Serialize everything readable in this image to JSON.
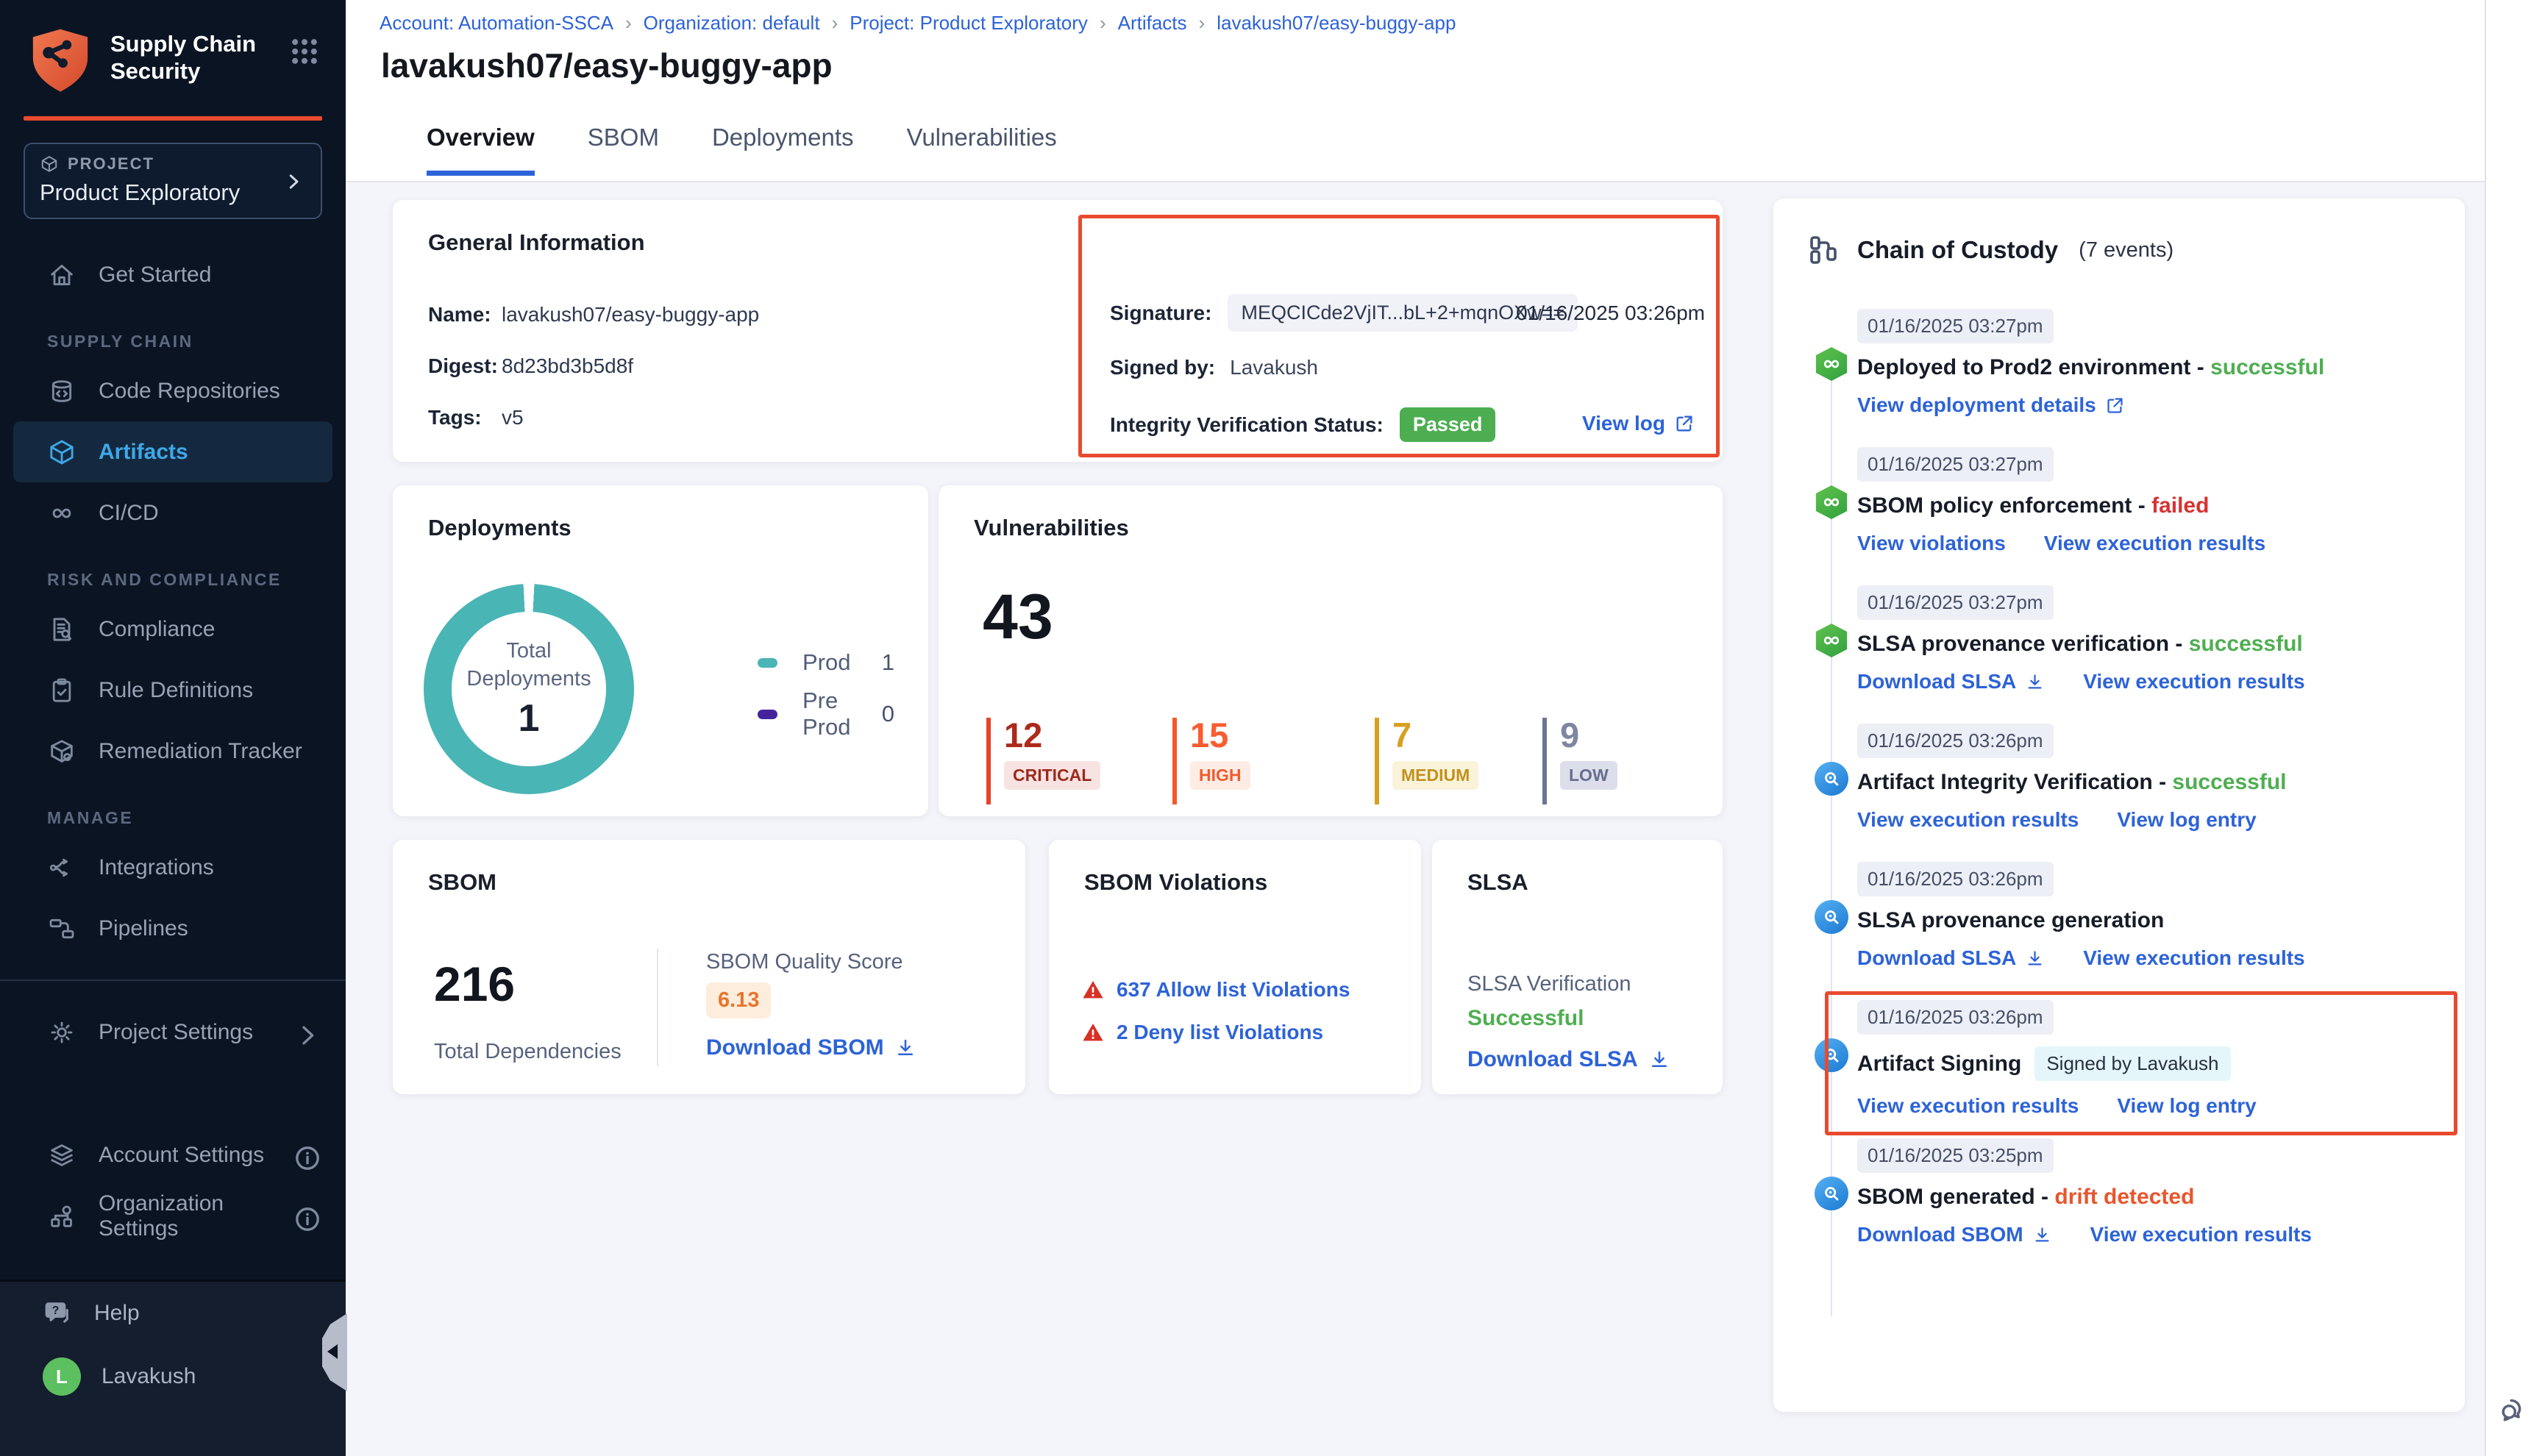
{
  "colors": {
    "brand_orange": "#e8573f",
    "accent_annotation_red": "#e84a2f",
    "link_blue": "#2d63d8",
    "success_green": "#4fae52",
    "failed_red": "#d73232",
    "drift_orange": "#e8562d",
    "passed_badge_green": "#4cae50",
    "donut_teal": "#4ab5b5",
    "donut_purple": "#44239d"
  },
  "app": {
    "logo_line1": "Supply Chain",
    "logo_line2": "Security"
  },
  "sidebar": {
    "project_label": "PROJECT",
    "project_name": "Product Exploratory",
    "nav": [
      {
        "type": "item",
        "id": "get-started",
        "icon": "home",
        "label": "Get Started"
      },
      {
        "type": "section",
        "label": "SUPPLY CHAIN"
      },
      {
        "type": "item",
        "id": "code-repositories",
        "icon": "repo",
        "label": "Code Repositories"
      },
      {
        "type": "item",
        "id": "artifacts",
        "icon": "cube",
        "label": "Artifacts",
        "active": true
      },
      {
        "type": "item",
        "id": "ci-cd",
        "icon": "infinity",
        "label": "CI/CD"
      },
      {
        "type": "section",
        "label": "RISK AND COMPLIANCE"
      },
      {
        "type": "item",
        "id": "compliance",
        "icon": "doc-search",
        "label": "Compliance"
      },
      {
        "type": "item",
        "id": "rule-definitions",
        "icon": "clipboard",
        "label": "Rule Definitions"
      },
      {
        "type": "item",
        "id": "remediation-tracker",
        "icon": "box",
        "label": "Remediation Tracker"
      },
      {
        "type": "section",
        "label": "MANAGE"
      },
      {
        "type": "item",
        "id": "integrations",
        "icon": "integrations",
        "label": "Integrations"
      },
      {
        "type": "item",
        "id": "pipelines",
        "icon": "pipelines",
        "label": "Pipelines"
      },
      {
        "type": "divider"
      },
      {
        "type": "item",
        "id": "project-settings",
        "icon": "gear",
        "label": "Project Settings",
        "trailing": "chevron"
      },
      {
        "type": "gap"
      },
      {
        "type": "item",
        "id": "account-settings",
        "icon": "layers",
        "label": "Account Settings",
        "trailing": "info"
      },
      {
        "type": "item",
        "id": "organization-settings",
        "icon": "org",
        "label": "Organization Settings",
        "trailing": "info"
      }
    ],
    "help_label": "Help",
    "user": {
      "initial": "L",
      "name": "Lavakush"
    }
  },
  "breadcrumb": [
    "Account: Automation-SSCA",
    "Organization: default",
    "Project: Product Exploratory",
    "Artifacts",
    "lavakush07/easy-buggy-app"
  ],
  "page": {
    "title": "lavakush07/easy-buggy-app"
  },
  "tabs": [
    {
      "label": "Overview",
      "active": true
    },
    {
      "label": "SBOM"
    },
    {
      "label": "Deployments"
    },
    {
      "label": "Vulnerabilities"
    }
  ],
  "general_info": {
    "title": "General Information",
    "fields": [
      {
        "label": "Name:",
        "value": "lavakush07/easy-buggy-app"
      },
      {
        "label": "Digest:",
        "value": "8d23bd3b5d8f"
      },
      {
        "label": "Tags:",
        "value": "v5"
      }
    ],
    "signature_label": "Signature:",
    "signature_value": "MEQCICde2VjIT...bL+2+mqnOXw==",
    "signature_time": "01/16/2025 03:26pm",
    "signed_by_label": "Signed by:",
    "signed_by": "Lavakush",
    "integrity_label": "Integrity Verification Status:",
    "integrity_status": "Passed",
    "view_log_label": "View log"
  },
  "chart_data": {
    "type": "pie",
    "title": "Deployments",
    "categories": [
      "Prod",
      "Pre Prod"
    ],
    "values": [
      1,
      0
    ],
    "colors": [
      "#4ab5b5",
      "#44239d"
    ],
    "center_label": "Total Deployments",
    "center_value": "1",
    "legend_position": "right"
  },
  "deployments_card": {
    "title": "Deployments"
  },
  "vulnerabilities_card": {
    "title": "Vulnerabilities",
    "total": "43",
    "severities": [
      {
        "label": "CRITICAL",
        "value": "12",
        "tone": "critical"
      },
      {
        "label": "HIGH",
        "value": "15",
        "tone": "high"
      },
      {
        "label": "MEDIUM",
        "value": "7",
        "tone": "medium"
      },
      {
        "label": "LOW",
        "value": "9",
        "tone": "low"
      }
    ]
  },
  "sbom_card": {
    "title": "SBOM",
    "total": "216",
    "total_label": "Total Dependencies",
    "quality_label": "SBOM Quality Score",
    "quality_score": "6.13",
    "download_label": "Download SBOM"
  },
  "sbom_violations_card": {
    "title": "SBOM Violations",
    "items": [
      {
        "label": "637 Allow list Violations"
      },
      {
        "label": "2 Deny list Violations"
      }
    ]
  },
  "slsa_card": {
    "title": "SLSA",
    "verification_label": "SLSA Verification",
    "verification_status": "Successful",
    "download_label": "Download SLSA"
  },
  "chain_of_custody": {
    "title": "Chain of Custody",
    "count_label": "(7 events)",
    "events": [
      {
        "time": "01/16/2025 03:27pm",
        "icon": "pipeline",
        "title": "Deployed to Prod2 environment",
        "status": {
          "text": "successful",
          "tone": "green"
        },
        "links": [
          {
            "label": "View deployment details",
            "icon": "external"
          }
        ]
      },
      {
        "time": "01/16/2025 03:27pm",
        "icon": "pipeline",
        "title": "SBOM policy enforcement",
        "status": {
          "text": "failed",
          "tone": "red"
        },
        "links": [
          {
            "label": "View violations"
          },
          {
            "label": "View execution results"
          }
        ]
      },
      {
        "time": "01/16/2025 03:27pm",
        "icon": "pipeline",
        "title": "SLSA provenance verification",
        "status": {
          "text": "successful",
          "tone": "green"
        },
        "links": [
          {
            "label": "Download SLSA",
            "icon": "download"
          },
          {
            "label": "View execution results"
          }
        ]
      },
      {
        "time": "01/16/2025 03:26pm",
        "icon": "scan",
        "title": "Artifact Integrity Verification",
        "status": {
          "text": "successful",
          "tone": "green"
        },
        "links": [
          {
            "label": "View execution results"
          },
          {
            "label": "View log entry"
          }
        ]
      },
      {
        "time": "01/16/2025 03:26pm",
        "icon": "scan",
        "title": "SLSA provenance generation",
        "links": [
          {
            "label": "Download SLSA",
            "icon": "download"
          },
          {
            "label": "View execution results"
          }
        ]
      },
      {
        "time": "01/16/2025 03:26pm",
        "icon": "scan",
        "title": "Artifact Signing",
        "badge": "Signed by Lavakush",
        "links": [
          {
            "label": "View execution results"
          },
          {
            "label": "View log entry"
          }
        ]
      },
      {
        "time": "01/16/2025 03:25pm",
        "icon": "scan",
        "title": "SBOM generated",
        "status": {
          "text": "drift detected",
          "tone": "orange"
        },
        "links": [
          {
            "label": "Download SBOM",
            "icon": "download"
          },
          {
            "label": "View execution results"
          }
        ]
      }
    ]
  }
}
